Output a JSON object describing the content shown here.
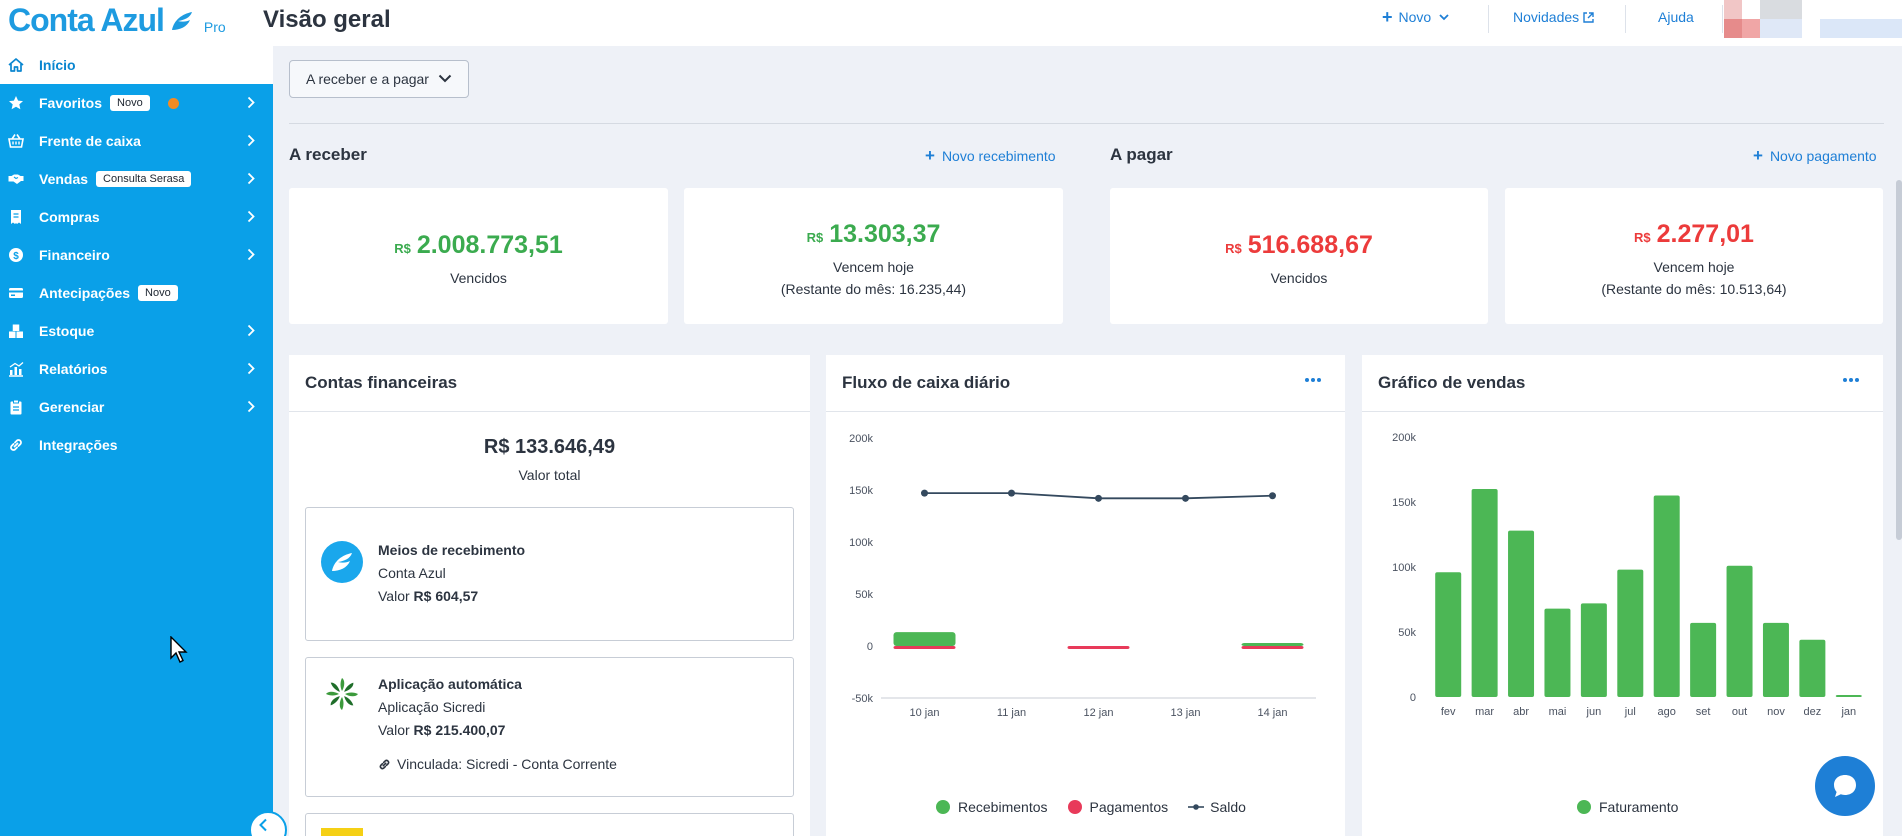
{
  "header": {
    "logo_text": "Conta Azul",
    "logo_tag": "Pro",
    "page_title": "Visão geral",
    "novo_label": "Novo",
    "novidades_label": "Novidades",
    "ajuda_label": "Ajuda"
  },
  "sidebar": {
    "items": [
      {
        "label": "Início",
        "icon": "home-icon",
        "active": true
      },
      {
        "label": "Favoritos",
        "icon": "star-icon",
        "tag": "Novo",
        "chevron": true,
        "dot": true
      },
      {
        "label": "Frente de caixa",
        "icon": "basket-icon",
        "chevron": true
      },
      {
        "label": "Vendas",
        "icon": "handshake-icon",
        "tag": "Consulta Serasa",
        "chevron": true
      },
      {
        "label": "Compras",
        "icon": "receipt-icon",
        "chevron": true
      },
      {
        "label": "Financeiro",
        "icon": "dollar-coin-icon",
        "chevron": true
      },
      {
        "label": "Antecipações",
        "icon": "card-icon",
        "tag": "Novo"
      },
      {
        "label": "Estoque",
        "icon": "boxes-icon",
        "chevron": true
      },
      {
        "label": "Relatórios",
        "icon": "chart-icon",
        "chevron": true
      },
      {
        "label": "Gerenciar",
        "icon": "clipboard-icon",
        "chevron": true
      },
      {
        "label": "Integrações",
        "icon": "link-icon"
      }
    ]
  },
  "filter": {
    "label": "A receber e a pagar"
  },
  "receber": {
    "title": "A receber",
    "link": "Novo recebimento",
    "cards": [
      {
        "currency": "R$",
        "value": "2.008.773,51",
        "label": "Vencidos",
        "sub": ""
      },
      {
        "currency": "R$",
        "value": "13.303,37",
        "label": "Vencem hoje",
        "sub": "(Restante do mês: 16.235,44)"
      }
    ]
  },
  "pagar": {
    "title": "A pagar",
    "link": "Novo pagamento",
    "cards": [
      {
        "currency": "R$",
        "value": "516.688,67",
        "label": "Vencidos",
        "sub": ""
      },
      {
        "currency": "R$",
        "value": "2.277,01",
        "label": "Vencem hoje",
        "sub": "(Restante do mês: 10.513,64)"
      }
    ]
  },
  "contas": {
    "title": "Contas financeiras",
    "total": "R$ 133.646,49",
    "total_label": "Valor total",
    "accounts": [
      {
        "name": "Meios de recebimento",
        "sub": "Conta Azul",
        "valor_label": "Valor",
        "valor": "R$ 604,57"
      },
      {
        "name": "Aplicação automática",
        "sub": "Aplicação Sicredi",
        "valor_label": "Valor",
        "valor": "R$ 215.400,07",
        "linked": "Vinculada: Sicredi - Conta Corrente"
      }
    ]
  },
  "colors": {
    "brand": "#0aa0e8",
    "green": "#3bab4f",
    "red": "#ec3b3b",
    "bar_green": "#4cb755",
    "payment_red": "#e83a5a",
    "saldo": "#34495e"
  },
  "chart_data": [
    {
      "title": "Fluxo de caixa diário",
      "type": "bar",
      "categories": [
        "10 jan",
        "11 jan",
        "12 jan",
        "13 jan",
        "14 jan"
      ],
      "ylim": [
        -50000,
        200000
      ],
      "yticks": [
        "200k",
        "150k",
        "100k",
        "50k",
        "0",
        "-50k"
      ],
      "series": [
        {
          "name": "Recebimentos",
          "type": "bar",
          "values": [
            13303,
            0,
            0,
            0,
            2277
          ]
        },
        {
          "name": "Pagamentos",
          "type": "bar",
          "values": [
            -1500,
            0,
            -2300,
            0,
            -500
          ]
        },
        {
          "name": "Saldo",
          "type": "line",
          "values": [
            147000,
            147000,
            142000,
            142000,
            144500
          ]
        }
      ]
    },
    {
      "title": "Gráfico de vendas",
      "type": "bar",
      "categories": [
        "fev",
        "mar",
        "abr",
        "mai",
        "jun",
        "jul",
        "ago",
        "set",
        "out",
        "nov",
        "dez",
        "jan"
      ],
      "ylim": [
        0,
        200000
      ],
      "yticks": [
        "200k",
        "150k",
        "100k",
        "50k",
        "0"
      ],
      "series": [
        {
          "name": "Faturamento",
          "values": [
            96000,
            160000,
            128000,
            68000,
            72000,
            98000,
            155000,
            57000,
            101000,
            57000,
            44000,
            1500
          ]
        }
      ]
    }
  ]
}
